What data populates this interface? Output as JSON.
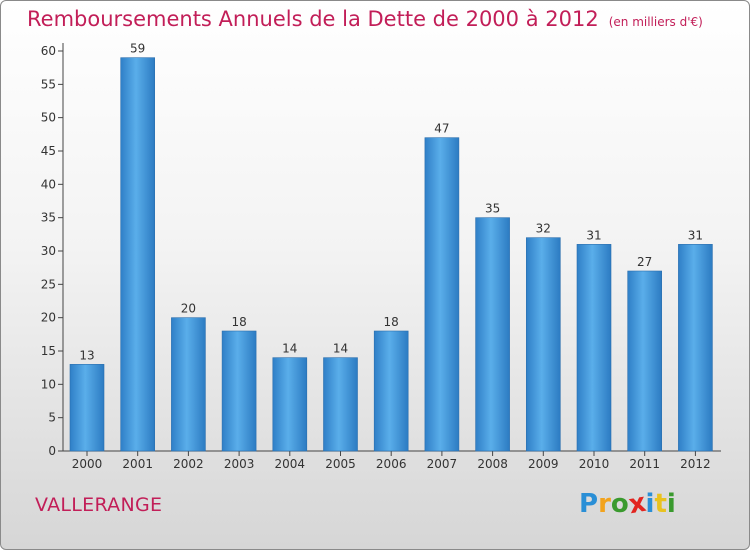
{
  "title": "Remboursements Annuels de la Dette de 2000 à 2012",
  "unit_note": "(en milliers d'€)",
  "commune": "VALLERANGE",
  "logo": {
    "letters": [
      "P",
      "r",
      "o",
      "x",
      "i",
      "t",
      "i"
    ],
    "colors": [
      "#2a8fd6",
      "#f2a31d",
      "#3a9a2e",
      "#e2241f",
      "#2a8fd6",
      "#e9c21f",
      "#3a9a2e"
    ]
  },
  "chart_data": {
    "type": "bar",
    "categories": [
      "2000",
      "2001",
      "2002",
      "2003",
      "2004",
      "2005",
      "2006",
      "2007",
      "2008",
      "2009",
      "2010",
      "2011",
      "2012"
    ],
    "values": [
      13,
      59,
      20,
      18,
      14,
      14,
      18,
      47,
      35,
      32,
      31,
      27,
      31
    ],
    "ylim": [
      0,
      60
    ],
    "yticks": [
      0,
      5,
      10,
      15,
      20,
      25,
      30,
      35,
      40,
      45,
      50,
      55,
      60
    ],
    "grid": false,
    "bar_color": "#3b93dd",
    "text_color": "#333333"
  }
}
